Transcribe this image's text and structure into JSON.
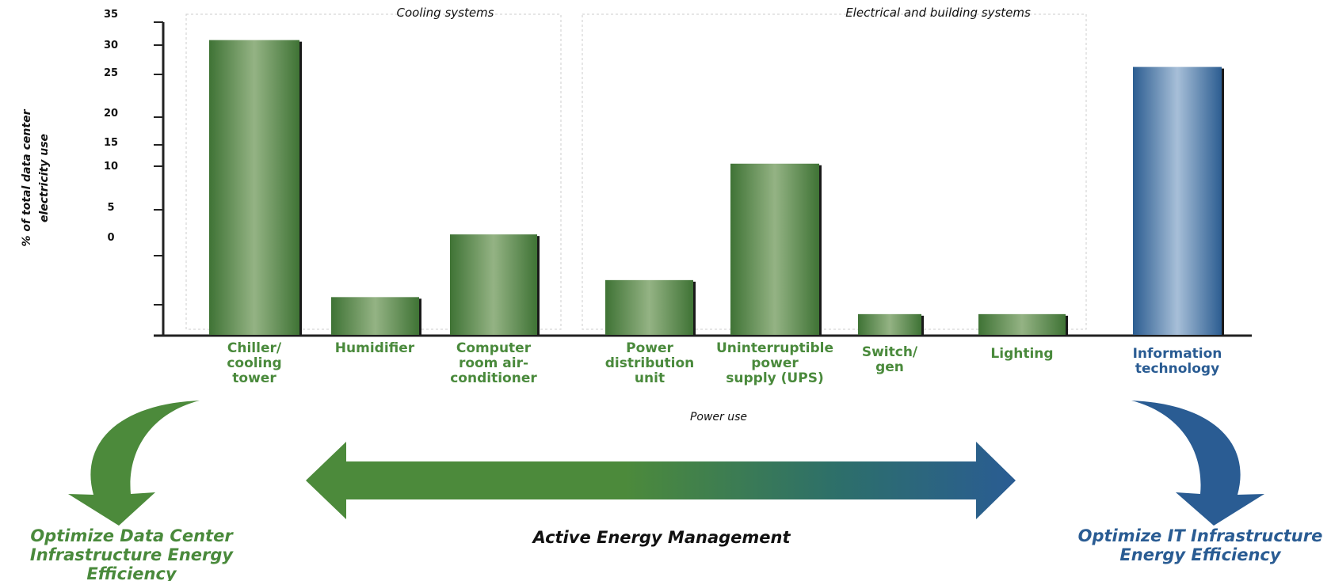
{
  "chart_data": {
    "type": "bar",
    "xlabel": "Power use",
    "ylabel_lines": [
      "% of total data center",
      "electricity use"
    ],
    "ylim": [
      0,
      35
    ],
    "y_ticks": [
      "35",
      "30",
      "25",
      "20",
      "15",
      "10",
      "5",
      "0",
      "",
      ""
    ],
    "categories": [
      [
        "Chiller/",
        "cooling",
        "tower"
      ],
      [
        "Humidifier"
      ],
      [
        "Computer",
        "room air-",
        "conditioner"
      ],
      [
        "Power",
        "distribution",
        "unit"
      ],
      [
        "Uninterruptible",
        "power",
        "supply (UPS)"
      ],
      [
        "Switch/",
        "gen"
      ],
      [
        "Lighting"
      ],
      [
        "Information",
        "technology"
      ]
    ],
    "values": [
      33,
      4.3,
      11.3,
      6.2,
      19.2,
      2.4,
      2.4,
      30
    ],
    "bar_colors": [
      "#5c8f4c",
      "#5c8f4c",
      "#5c8f4c",
      "#5c8f4c",
      "#5c8f4c",
      "#5c8f4c",
      "#5c8f4c",
      "#3f6c9e"
    ],
    "groups": [
      {
        "label": "Cooling systems"
      },
      {
        "label": "Electrical and building systems"
      }
    ],
    "grid": false,
    "legend": "none"
  },
  "colors": {
    "green": "#4a8a3c",
    "blue": "#2a5c93",
    "axis": "#222222"
  },
  "captions": {
    "left": [
      "Optimize Data Center",
      "Infrastructure Energy",
      "Efficiency"
    ],
    "center": "Active Energy Management",
    "right": [
      "Optimize IT Infrastructure",
      "Energy Efficiency"
    ]
  },
  "icons": {
    "left_arrow": "curved-down-arrow-icon",
    "right_arrow": "curved-down-arrow-icon",
    "center_arrow": "double-headed-arrow-icon"
  }
}
